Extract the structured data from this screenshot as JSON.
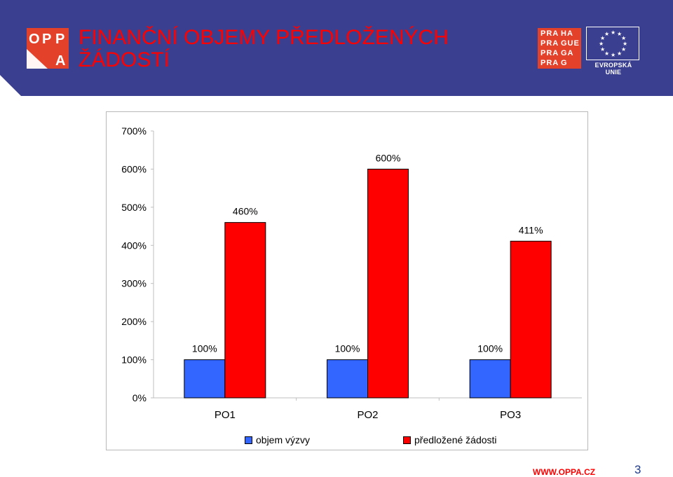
{
  "header": {
    "title_line1": "FINANČNÍ OBJEMY PŘEDLOŽENÝCH",
    "title_line2": "ŽÁDOSTÍ",
    "bg_color": "#3b3f8f",
    "title_color": "#ff0000"
  },
  "logos": {
    "opp": {
      "letters": [
        "O",
        "P",
        "P",
        "A"
      ],
      "color": "#e4412b"
    },
    "praha": {
      "rows": [
        [
          "PRA",
          "HA"
        ],
        [
          "PRA",
          "GUE"
        ],
        [
          "PRA",
          "GA"
        ],
        [
          "PRA",
          "G"
        ]
      ],
      "color": "#e4412b"
    },
    "eu": {
      "label": "EVROPSKÁ UNIE"
    }
  },
  "chart_data": {
    "type": "bar",
    "categories": [
      "PO1",
      "PO2",
      "PO3"
    ],
    "series": [
      {
        "name": "objem výzvy",
        "values": [
          100,
          100,
          100
        ],
        "labels": [
          "100%",
          "100%",
          "100%"
        ],
        "color": "#3366ff"
      },
      {
        "name": "předložené žádosti",
        "values": [
          460,
          600,
          411
        ],
        "labels": [
          "460%",
          "600%",
          "411%"
        ],
        "color": "#ff0000"
      }
    ],
    "ylim": [
      0,
      700
    ],
    "yticks": [
      0,
      100,
      200,
      300,
      400,
      500,
      600,
      700
    ],
    "ytick_labels": [
      "0%",
      "100%",
      "200%",
      "300%",
      "400%",
      "500%",
      "600%",
      "700%"
    ],
    "grid": false,
    "legend_position": "bottom"
  },
  "footer": {
    "url": "WWW.OPPA.CZ",
    "page": "3"
  }
}
